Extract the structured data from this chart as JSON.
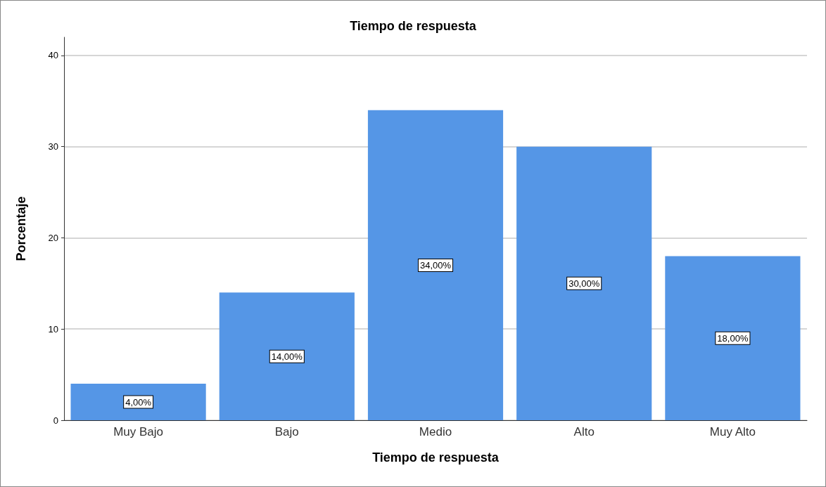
{
  "chart_data": {
    "type": "bar",
    "title": "Tiempo de respuesta",
    "xlabel": "Tiempo de respuesta",
    "ylabel": "Porcentaje",
    "categories": [
      "Muy Bajo",
      "Bajo",
      "Medio",
      "Alto",
      "Muy Alto"
    ],
    "values": [
      4,
      14,
      34,
      30,
      18
    ],
    "value_labels": [
      "4,00%",
      "14,00%",
      "34,00%",
      "30,00%",
      "18,00%"
    ],
    "color": "#5596e6",
    "ylim": [
      0,
      42
    ],
    "yticks": [
      0,
      10,
      20,
      30,
      40
    ],
    "grid": "y"
  }
}
